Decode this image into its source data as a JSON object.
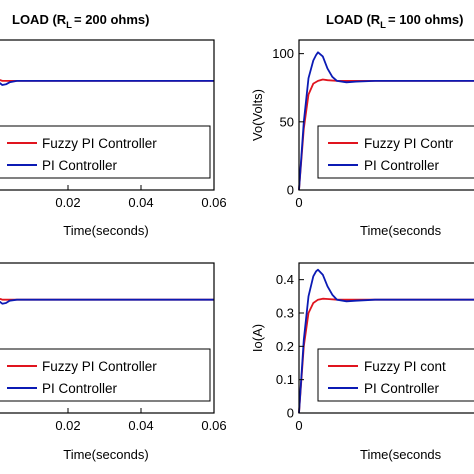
{
  "colors": {
    "fuzzy": "#e0141e",
    "pi": "#0b1ab4"
  },
  "chart_data": [
    {
      "type": "line",
      "title": "LOAD (R",
      "title_sub": "L",
      "title_rest": "= 200 ohms)",
      "xlabel": "Time(seconds)",
      "ylabel": "",
      "xlim": [
        0,
        0.06
      ],
      "xticks": [
        "0.02",
        "0.04",
        "0.06"
      ],
      "legend": "bottom",
      "series": [
        {
          "name": "Fuzzy PI Controller",
          "x": [
            0,
            0.0005,
            0.001,
            0.0015,
            0.002,
            0.003,
            0.06
          ],
          "y": [
            80,
            80,
            80.5,
            80.5,
            80,
            80,
            80
          ]
        },
        {
          "name": "PI Controller",
          "x": [
            0,
            0.0005,
            0.001,
            0.0015,
            0.002,
            0.003,
            0.004,
            0.006,
            0.06
          ],
          "y": [
            80,
            80,
            79,
            78,
            77,
            77.5,
            79,
            80,
            80
          ]
        }
      ]
    },
    {
      "type": "line",
      "title": "LOAD (R",
      "title_sub": "L",
      "title_rest": "= 100 ohms)",
      "xlabel": "Time(seconds",
      "ylabel": "Vo(Volts)",
      "xlim": [
        0,
        0.02
      ],
      "ylim": [
        0,
        110
      ],
      "xticks": [
        "0",
        "0.02"
      ],
      "yticks": [
        "0",
        "50",
        "100"
      ],
      "legend": "bottom",
      "series": [
        {
          "name": "Fuzzy PI Contr",
          "x": [
            0,
            0.0005,
            0.001,
            0.0015,
            0.002,
            0.0025,
            0.003,
            0.004,
            0.006,
            0.02
          ],
          "y": [
            0,
            45,
            70,
            78,
            80,
            81,
            80.5,
            80,
            80,
            80
          ]
        },
        {
          "name": "PI Controller",
          "x": [
            0,
            0.0005,
            0.001,
            0.0015,
            0.0018,
            0.002,
            0.0025,
            0.003,
            0.0035,
            0.004,
            0.005,
            0.006,
            0.008,
            0.02
          ],
          "y": [
            0,
            50,
            82,
            95,
            99,
            101,
            98,
            89,
            83,
            80,
            79,
            79.5,
            80,
            80
          ]
        }
      ]
    },
    {
      "type": "line",
      "title": "",
      "xlabel": "Time(seconds)",
      "ylabel": "",
      "xlim": [
        0,
        0.06
      ],
      "xticks": [
        "0.02",
        "0.04",
        "0.06"
      ],
      "legend": "bottom",
      "series": [
        {
          "name": "Fuzzy PI Controller",
          "x": [
            0,
            0.0005,
            0.001,
            0.0015,
            0.002,
            0.003,
            0.06
          ],
          "y": [
            0.34,
            0.34,
            0.342,
            0.342,
            0.34,
            0.34,
            0.34
          ]
        },
        {
          "name": "PI Controller",
          "x": [
            0,
            0.0005,
            0.001,
            0.0015,
            0.002,
            0.003,
            0.004,
            0.006,
            0.06
          ],
          "y": [
            0.34,
            0.34,
            0.336,
            0.332,
            0.328,
            0.33,
            0.337,
            0.34,
            0.34
          ]
        }
      ]
    },
    {
      "type": "line",
      "title": "",
      "xlabel": "Time(seconds",
      "ylabel": "Io(A)",
      "xlim": [
        0,
        0.02
      ],
      "ylim": [
        0,
        0.45
      ],
      "xticks": [
        "0",
        "0.02"
      ],
      "yticks": [
        "0",
        "0.1",
        "0.2",
        "0.3",
        "0.4"
      ],
      "legend": "bottom",
      "series": [
        {
          "name": "Fuzzy PI cont",
          "x": [
            0,
            0.0005,
            0.001,
            0.0015,
            0.002,
            0.0025,
            0.003,
            0.004,
            0.006,
            0.02
          ],
          "y": [
            0,
            0.2,
            0.3,
            0.33,
            0.34,
            0.343,
            0.342,
            0.34,
            0.34,
            0.34
          ]
        },
        {
          "name": "PI Controller",
          "x": [
            0,
            0.0005,
            0.001,
            0.0015,
            0.0018,
            0.002,
            0.0025,
            0.003,
            0.0035,
            0.004,
            0.005,
            0.006,
            0.008,
            0.02
          ],
          "y": [
            0,
            0.22,
            0.35,
            0.41,
            0.425,
            0.43,
            0.415,
            0.38,
            0.355,
            0.34,
            0.335,
            0.337,
            0.34,
            0.34
          ]
        }
      ]
    }
  ]
}
